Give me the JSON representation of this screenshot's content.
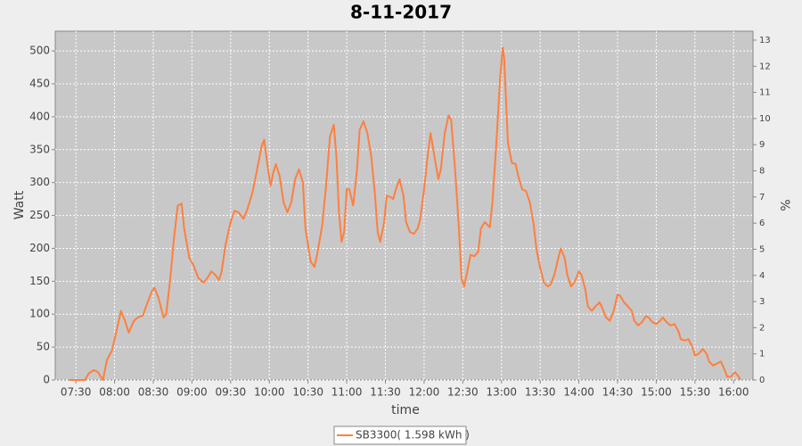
{
  "chart_data": {
    "type": "line",
    "title": "8-11-2017",
    "x_label": "time",
    "y_label": "Watt",
    "y2_label": "%",
    "xlim": [
      "07:14",
      "16:15"
    ],
    "xticks": [
      "07:30",
      "08:00",
      "08:30",
      "09:00",
      "09:30",
      "10:00",
      "10:30",
      "11:00",
      "11:30",
      "12:00",
      "12:30",
      "13:00",
      "13:30",
      "14:00",
      "14:30",
      "15:00",
      "15:30",
      "16:00"
    ],
    "ylim": [
      0,
      530
    ],
    "yticks": [
      0,
      50,
      100,
      150,
      200,
      250,
      300,
      350,
      400,
      450,
      500
    ],
    "y2lim": [
      0,
      13.34
    ],
    "y2ticks": [
      0,
      1,
      2,
      3,
      4,
      5,
      6,
      7,
      8,
      9,
      10,
      11,
      12,
      13
    ],
    "grid": true,
    "legend": "bottom",
    "x": [
      "07:25",
      "07:37",
      "07:40",
      "07:44",
      "07:47",
      "07:51",
      "07:54",
      "07:58",
      "08:01",
      "08:05",
      "08:08",
      "08:11",
      "08:15",
      "08:18",
      "08:22",
      "08:25",
      "08:29",
      "08:31",
      "08:34",
      "08:38",
      "08:40",
      "08:43",
      "08:46",
      "08:49",
      "08:52",
      "08:54",
      "08:58",
      "09:01",
      "09:05",
      "09:09",
      "09:12",
      "09:15",
      "09:18",
      "09:21",
      "09:23",
      "09:26",
      "09:30",
      "09:33",
      "09:36",
      "09:40",
      "09:43",
      "09:47",
      "09:50",
      "09:54",
      "09:56",
      "09:59",
      "10:01",
      "10:03",
      "10:05",
      "10:08",
      "10:11",
      "10:14",
      "10:17",
      "10:20",
      "10:23",
      "10:26",
      "10:28",
      "10:32",
      "10:35",
      "10:37",
      "10:41",
      "10:44",
      "10:47",
      "10:50",
      "10:52",
      "10:54",
      "10:56",
      "10:58",
      "11:00",
      "11:02",
      "11:05",
      "11:08",
      "11:10",
      "11:13",
      "11:16",
      "11:19",
      "11:22",
      "11:24",
      "11:26",
      "11:29",
      "11:31",
      "11:34",
      "11:36",
      "11:39",
      "11:41",
      "11:44",
      "11:46",
      "11:49",
      "11:52",
      "11:55",
      "11:57",
      "12:00",
      "12:03",
      "12:05",
      "12:08",
      "12:11",
      "12:13",
      "12:16",
      "12:19",
      "12:21",
      "12:24",
      "12:27",
      "12:29",
      "12:31",
      "12:33",
      "12:36",
      "12:39",
      "12:42",
      "12:44",
      "12:47",
      "12:51",
      "12:53",
      "12:56",
      "12:59",
      "13:01",
      "13:02",
      "13:05",
      "13:08",
      "13:11",
      "13:13",
      "13:16",
      "13:19",
      "13:22",
      "13:25",
      "13:27",
      "13:30",
      "13:33",
      "13:36",
      "13:38",
      "13:41",
      "13:44",
      "13:46",
      "13:49",
      "13:51",
      "13:54",
      "13:57",
      "14:00",
      "14:02",
      "14:05",
      "14:07",
      "14:10",
      "14:13",
      "14:16",
      "14:18",
      "14:21",
      "14:24",
      "14:27",
      "14:30",
      "14:32",
      "14:35",
      "14:38",
      "14:41",
      "14:43",
      "14:46",
      "14:49",
      "14:52",
      "14:54",
      "14:57",
      "15:00",
      "15:03",
      "15:05",
      "15:08",
      "15:11",
      "15:14",
      "15:17",
      "15:19",
      "15:22",
      "15:25",
      "15:28",
      "15:30",
      "15:33",
      "15:36",
      "15:39",
      "15:41",
      "15:44",
      "15:47",
      "15:50",
      "15:52",
      "15:55",
      "15:58",
      "16:01",
      "16:04",
      "16:05"
    ],
    "series": [
      {
        "name": "SB3300( 1.598 kWh )",
        "color": "#ff7f3f",
        "values": [
          0,
          0,
          10,
          15,
          12,
          0,
          30,
          45,
          70,
          105,
          90,
          72,
          90,
          95,
          98,
          115,
          135,
          140,
          125,
          95,
          100,
          150,
          215,
          265,
          268,
          230,
          185,
          175,
          155,
          148,
          155,
          165,
          160,
          152,
          165,
          205,
          240,
          257,
          255,
          245,
          260,
          285,
          315,
          355,
          365,
          320,
          295,
          315,
          328,
          310,
          270,
          255,
          270,
          305,
          320,
          300,
          230,
          180,
          172,
          190,
          235,
          295,
          370,
          388,
          340,
          255,
          210,
          225,
          290,
          290,
          265,
          320,
          380,
          393,
          375,
          340,
          280,
          225,
          210,
          240,
          280,
          278,
          275,
          295,
          305,
          280,
          240,
          225,
          222,
          230,
          245,
          290,
          345,
          375,
          340,
          305,
          320,
          375,
          402,
          395,
          320,
          230,
          155,
          142,
          160,
          190,
          188,
          195,
          230,
          240,
          232,
          270,
          360,
          460,
          505,
          490,
          360,
          330,
          328,
          310,
          290,
          287,
          270,
          235,
          200,
          170,
          148,
          142,
          145,
          160,
          185,
          200,
          185,
          160,
          142,
          150,
          165,
          160,
          138,
          112,
          105,
          112,
          118,
          110,
          95,
          90,
          105,
          130,
          128,
          118,
          112,
          105,
          90,
          83,
          88,
          97,
          95,
          88,
          85,
          90,
          95,
          88,
          83,
          85,
          75,
          62,
          60,
          62,
          50,
          37,
          40,
          47,
          40,
          28,
          22,
          25,
          28,
          20,
          5,
          5,
          12,
          5,
          0
        ]
      }
    ]
  }
}
